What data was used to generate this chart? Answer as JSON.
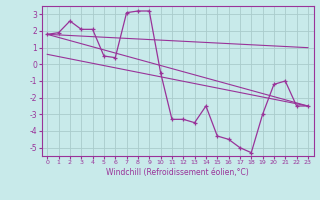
{
  "xlabel": "Windchill (Refroidissement éolien,°C)",
  "background_color": "#c8eaea",
  "grid_color": "#aacccc",
  "line_color": "#993399",
  "ylim": [
    -5.5,
    3.5
  ],
  "xlim": [
    -0.5,
    23.5
  ],
  "yticks": [
    -5,
    -4,
    -3,
    -2,
    -1,
    0,
    1,
    2,
    3
  ],
  "xticks": [
    0,
    1,
    2,
    3,
    4,
    5,
    6,
    7,
    8,
    9,
    10,
    11,
    12,
    13,
    14,
    15,
    16,
    17,
    18,
    19,
    20,
    21,
    22,
    23
  ],
  "line1_x": [
    0,
    1,
    2,
    3,
    4,
    5,
    6,
    7,
    8,
    9,
    10,
    11,
    12,
    13,
    14,
    15,
    16,
    17,
    18,
    19,
    20,
    21,
    22,
    23
  ],
  "line1_y": [
    1.8,
    1.9,
    2.6,
    2.1,
    2.1,
    0.5,
    0.4,
    3.1,
    3.2,
    3.2,
    -0.5,
    -3.3,
    -3.3,
    -3.5,
    -2.5,
    -4.3,
    -4.5,
    -5.0,
    -5.3,
    -3.0,
    -1.2,
    -1.0,
    -2.5,
    -2.5
  ],
  "line2_x": [
    0,
    23
  ],
  "line2_y": [
    1.8,
    1.0
  ],
  "line3_x": [
    0,
    23
  ],
  "line3_y": [
    0.6,
    -2.5
  ],
  "line4_x": [
    0,
    23
  ],
  "line4_y": [
    1.8,
    -2.5
  ]
}
